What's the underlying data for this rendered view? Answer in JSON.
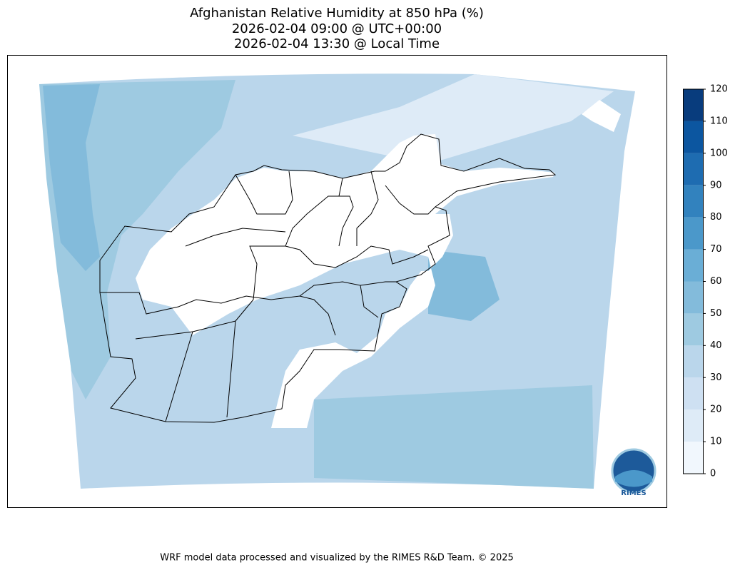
{
  "title": [
    "Afghanistan Relative Humidity at 850 hPa (%)",
    "2026-02-04 09:00 @ UTC+00:00",
    "2026-02-04 13:30 @ Local Time"
  ],
  "colorbar": {
    "ticks": [
      0,
      10,
      20,
      30,
      40,
      50,
      60,
      70,
      80,
      90,
      100,
      110,
      120
    ],
    "colors": [
      "#f1f7fd",
      "#deebf7",
      "#cee0f2",
      "#bad6eb",
      "#9ecae1",
      "#83bbdb",
      "#6aaed6",
      "#4b98ca",
      "#3282be",
      "#1e6cb1",
      "#0c56a0",
      "#083c7d"
    ]
  },
  "logo_text": "RIMES",
  "footer": "WRF model data processed and visualized by the RIMES R&D Team. © 2025"
}
